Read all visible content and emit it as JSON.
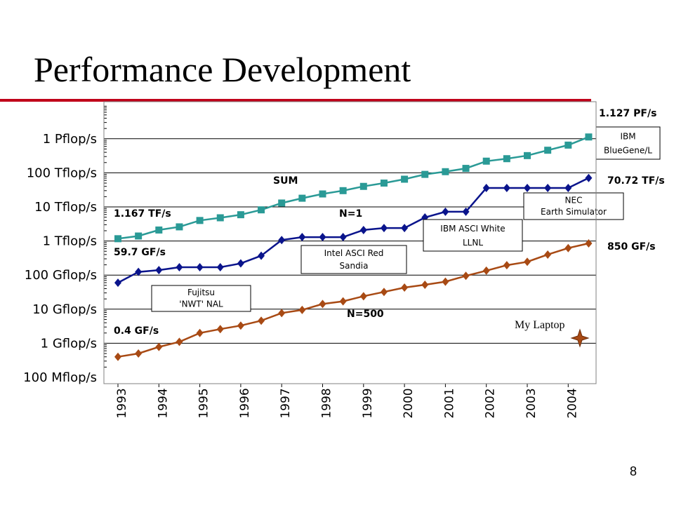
{
  "slide": {
    "title": "Performance Development",
    "page_number": "8"
  },
  "colors": {
    "title_rule": "#c0001a",
    "sum": "#2a9a96",
    "n1": "#0a148c",
    "n500": "#a84a14"
  },
  "chart_data": {
    "type": "line",
    "y_scale": "log",
    "y_unit": "flop/s",
    "ylim": [
      100000000.0,
      1e+16
    ],
    "xlim": [
      1993,
      2005
    ],
    "y_ticks": [
      {
        "value": 100000000.0,
        "label": "100 Mflop/s"
      },
      {
        "value": 1000000000.0,
        "label": "1 Gflop/s"
      },
      {
        "value": 10000000000.0,
        "label": "10 Gflop/s"
      },
      {
        "value": 100000000000.0,
        "label": "100 Gflop/s"
      },
      {
        "value": 1000000000000.0,
        "label": "1 Tflop/s"
      },
      {
        "value": 10000000000000.0,
        "label": "10 Tflop/s"
      },
      {
        "value": 100000000000000.0,
        "label": "100 Tflop/s"
      },
      {
        "value": 1000000000000000.0,
        "label": "1 Pflop/s"
      }
    ],
    "x_ticks": [
      {
        "value": 1993,
        "label": "1993"
      },
      {
        "value": 1994,
        "label": "1994"
      },
      {
        "value": 1995,
        "label": "1995"
      },
      {
        "value": 1996,
        "label": "1996"
      },
      {
        "value": 1997,
        "label": "1997"
      },
      {
        "value": 1998,
        "label": "1998"
      },
      {
        "value": 1999,
        "label": "1999"
      },
      {
        "value": 2000,
        "label": "2000"
      },
      {
        "value": 2001,
        "label": "2001"
      },
      {
        "value": 2002,
        "label": "2002"
      },
      {
        "value": 2003,
        "label": "2003"
      },
      {
        "value": 2004,
        "label": "2004"
      }
    ],
    "x": [
      1993.0,
      1993.5,
      1994.0,
      1994.5,
      1995.0,
      1995.5,
      1996.0,
      1996.5,
      1997.0,
      1997.5,
      1998.0,
      1998.5,
      1999.0,
      1999.5,
      2000.0,
      2000.5,
      2001.0,
      2001.5,
      2002.0,
      2002.5,
      2003.0,
      2003.5,
      2004.0,
      2004.5
    ],
    "series": [
      {
        "name": "SUM",
        "color_key": "sum",
        "marker": "square",
        "values": [
          1167000000000.0,
          1400000000000.0,
          2100000000000.0,
          2600000000000.0,
          4000000000000.0,
          4800000000000.0,
          5900000000000.0,
          8200000000000.0,
          13000000000000.0,
          18000000000000.0,
          24000000000000.0,
          30000000000000.0,
          40000000000000.0,
          50000000000000.0,
          65000000000000.0,
          90000000000000.0,
          108000000000000.0,
          135000000000000.0,
          220000000000000.0,
          260000000000000.0,
          320000000000000.0,
          460000000000000.0,
          650000000000000.0,
          1127000000000000.0
        ]
      },
      {
        "name": "N=1",
        "color_key": "n1",
        "marker": "diamond",
        "values": [
          59700000000.0,
          124000000000.0,
          140000000000.0,
          170000000000.0,
          170000000000.0,
          170000000000.0,
          220000000000.0,
          370000000000.0,
          1068000000000.0,
          1300000000000.0,
          1300000000000.0,
          1300000000000.0,
          2100000000000.0,
          2400000000000.0,
          2400000000000.0,
          4900000000000.0,
          7200000000000.0,
          7200000000000.0,
          35900000000000.0,
          35900000000000.0,
          35900000000000.0,
          35900000000000.0,
          35900000000000.0,
          70720000000000.0
        ]
      },
      {
        "name": "N=500",
        "color_key": "n500",
        "marker": "diamond",
        "values": [
          400000000.0,
          500000000.0,
          780000000.0,
          1100000000.0,
          2000000000.0,
          2600000000.0,
          3300000000.0,
          4600000000.0,
          7700000000.0,
          9500000000.0,
          14200000000.0,
          17000000000.0,
          24000000000.0,
          32000000000.0,
          43000000000.0,
          52000000000.0,
          64000000000.0,
          95000000000.0,
          135000000000.0,
          195000000000.0,
          245000000000.0,
          400000000000.0,
          620000000000.0,
          850000000000.0
        ]
      }
    ],
    "annotations": {
      "sum_start": "1.167 TF/s",
      "sum_end": "1.127 PF/s",
      "n1_start": "59.7 GF/s",
      "n1_end": "70.72 TF/s",
      "n500_start": "0.4 GF/s",
      "n500_end": "850 GF/s",
      "sum_label": "SUM",
      "n1_label": "N=1",
      "n500_label": "N=500",
      "laptop": "My Laptop"
    },
    "boxes": [
      {
        "key": "fujitsu",
        "line1": "Fujitsu",
        "line2": "'NWT' NAL"
      },
      {
        "key": "intel",
        "line1": "Intel ASCI Red",
        "line2": "Sandia"
      },
      {
        "key": "ibm_white",
        "line1": "IBM ASCI White",
        "line2": "LLNL"
      },
      {
        "key": "nec",
        "line1": "NEC",
        "line2": "Earth Simulator"
      },
      {
        "key": "bluegene",
        "line1": "IBM",
        "line2": "BlueGene/L"
      }
    ]
  }
}
